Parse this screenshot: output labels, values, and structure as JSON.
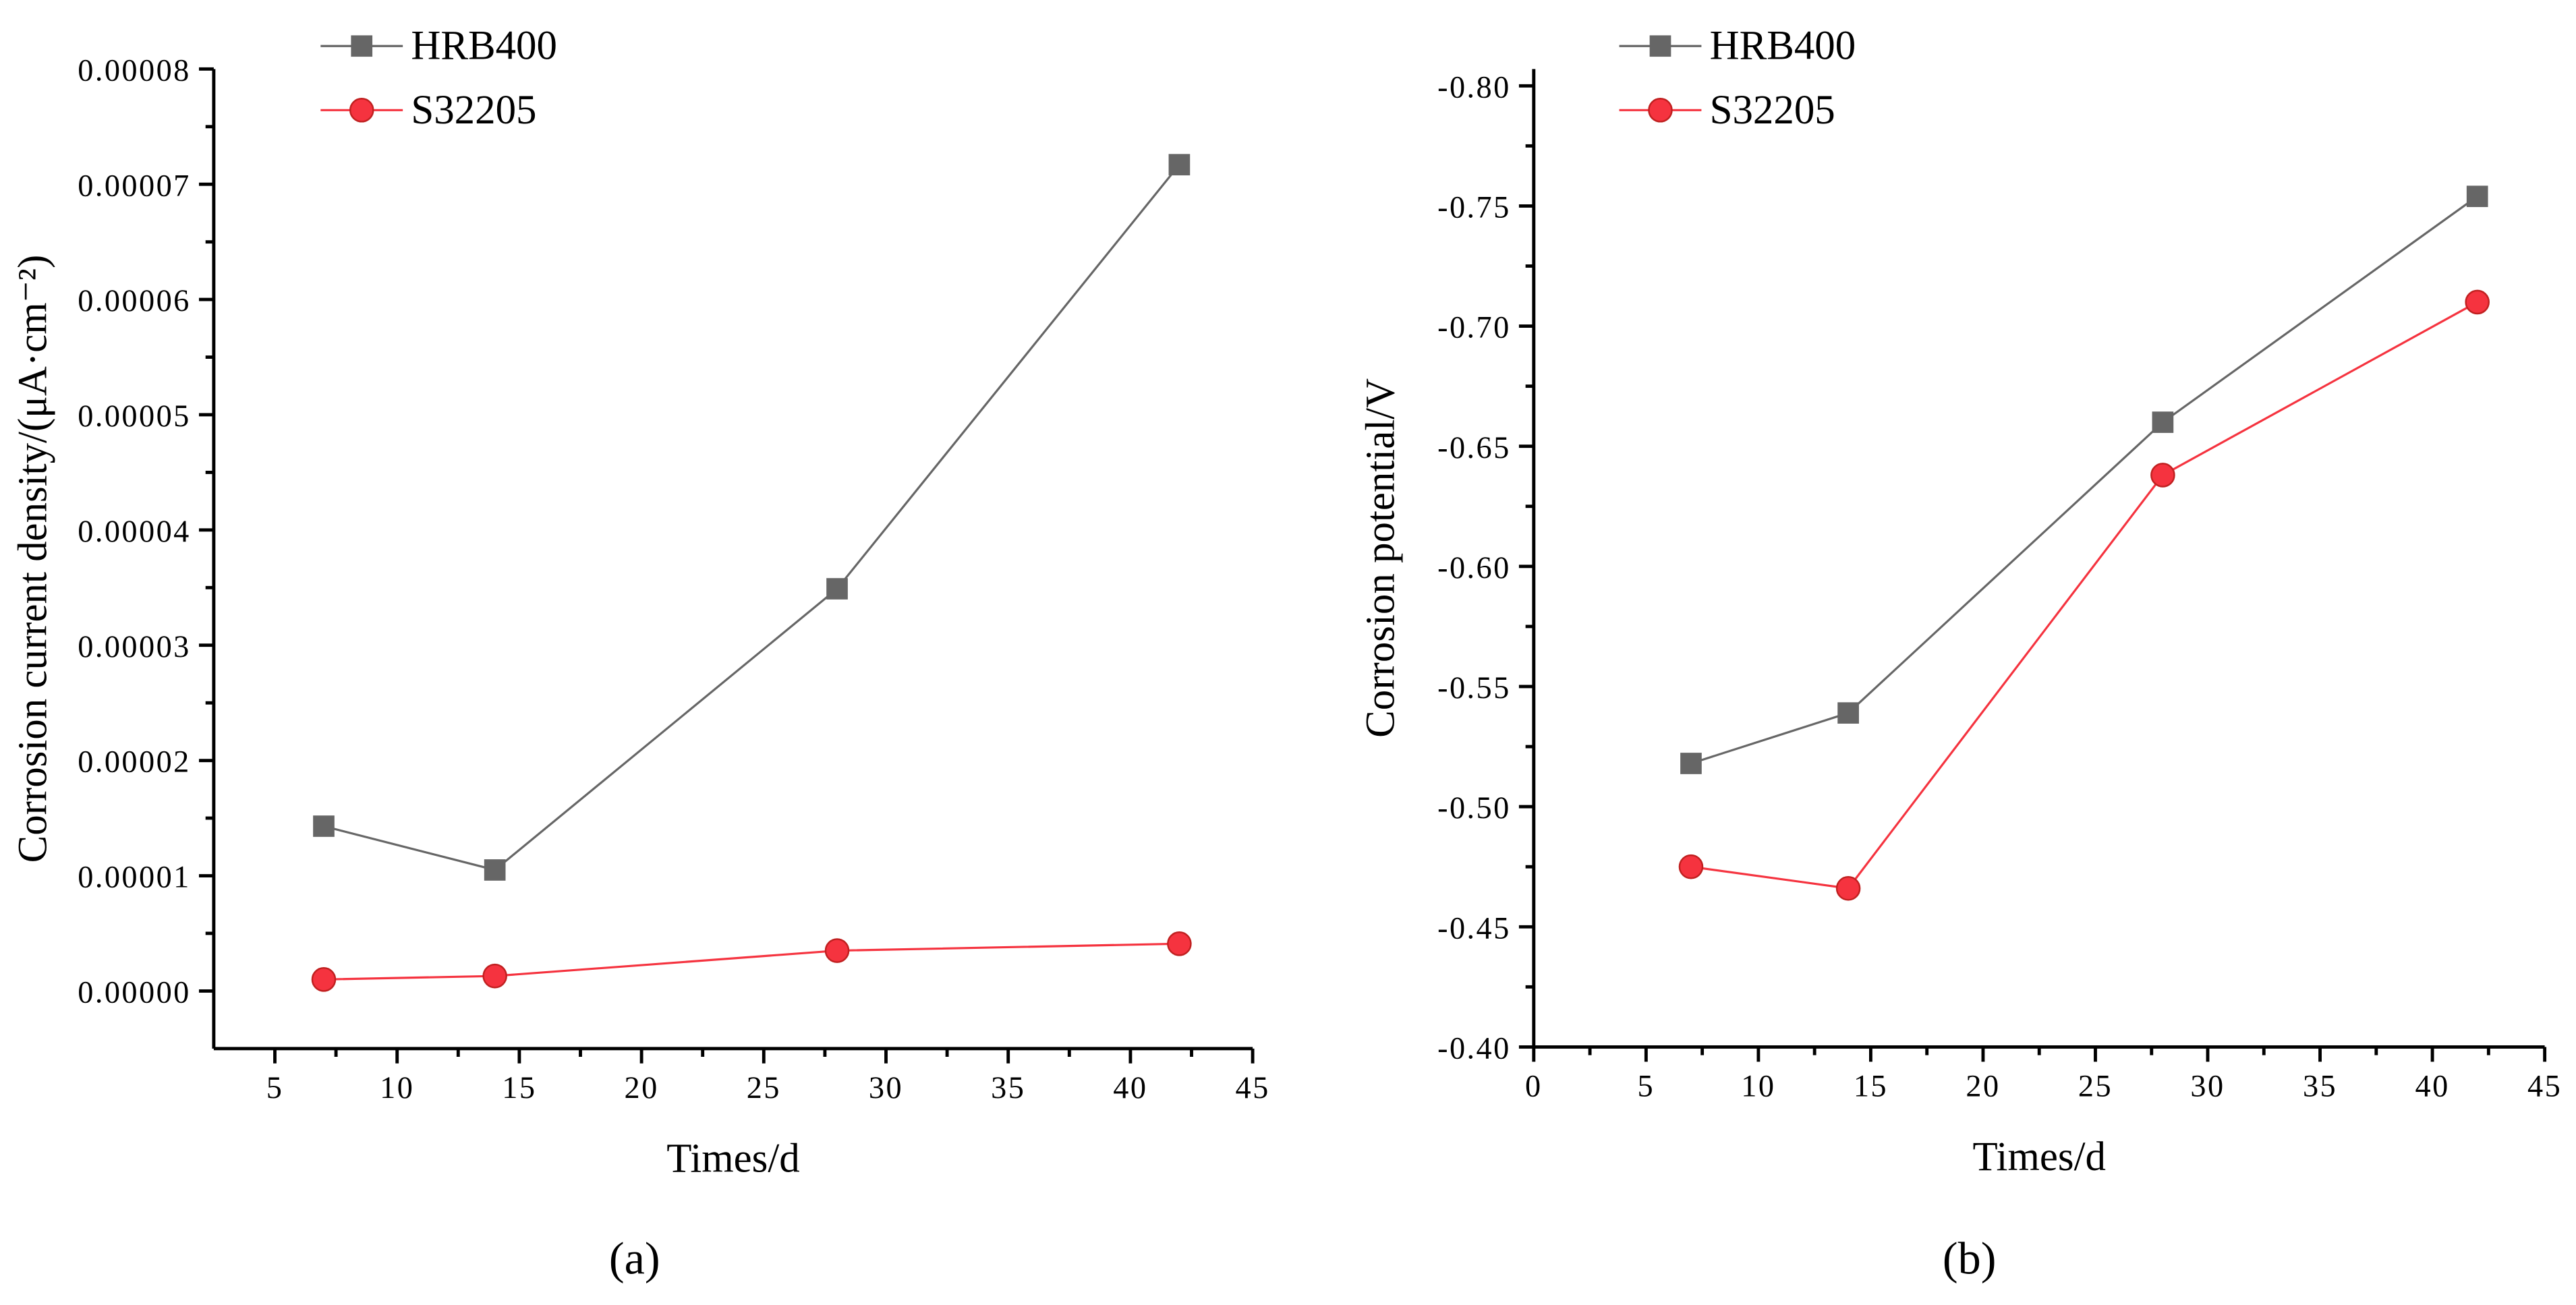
{
  "chart_data": [
    {
      "type": "line",
      "caption": "(a)",
      "xlabel": "Times/d",
      "ylabel": "Corrosion current density/(μA·cm⁻²)",
      "xlim": [
        2.5,
        45
      ],
      "xticks": [
        5,
        10,
        15,
        20,
        25,
        30,
        35,
        40,
        45
      ],
      "ylim": [
        -5e-06,
        8e-05
      ],
      "yticks": [
        {
          "value": 0,
          "label": "0.00000"
        },
        {
          "value": 1e-05,
          "label": "0.00001"
        },
        {
          "value": 2e-05,
          "label": "0.00002"
        },
        {
          "value": 3e-05,
          "label": "0.00003"
        },
        {
          "value": 4e-05,
          "label": "0.00004"
        },
        {
          "value": 5e-05,
          "label": "0.00005"
        },
        {
          "value": 6e-05,
          "label": "0.00006"
        },
        {
          "value": 7e-05,
          "label": "0.00007"
        },
        {
          "value": 8e-05,
          "label": "0.00008"
        }
      ],
      "x": [
        7,
        14,
        28,
        42
      ],
      "series": [
        {
          "name": "HRB400",
          "color": "#666666",
          "marker": "square",
          "values": [
            1.43e-05,
            1.05e-05,
            3.49e-05,
            7.17e-05
          ]
        },
        {
          "name": "S32205",
          "color": "#f5333f",
          "marker": "circle",
          "values": [
            1e-06,
            1.3e-06,
            3.5e-06,
            4.1e-06
          ]
        }
      ]
    },
    {
      "type": "line",
      "caption": "(b)",
      "xlabel": "Times/d",
      "ylabel": "Corrosion potential/V",
      "xlim": [
        0,
        45
      ],
      "xticks": [
        0,
        5,
        10,
        15,
        20,
        25,
        30,
        35,
        40,
        45
      ],
      "ylim": [
        -0.4,
        -0.807
      ],
      "yticks": [
        {
          "value": -0.4,
          "label": "-0.40"
        },
        {
          "value": -0.45,
          "label": "-0.45"
        },
        {
          "value": -0.5,
          "label": "-0.50"
        },
        {
          "value": -0.55,
          "label": "-0.55"
        },
        {
          "value": -0.6,
          "label": "-0.60"
        },
        {
          "value": -0.65,
          "label": "-0.65"
        },
        {
          "value": -0.7,
          "label": "-0.70"
        },
        {
          "value": -0.75,
          "label": "-0.75"
        },
        {
          "value": -0.8,
          "label": "-0.80"
        }
      ],
      "x": [
        7,
        14,
        28,
        42
      ],
      "series": [
        {
          "name": "HRB400",
          "color": "#666666",
          "marker": "square",
          "values": [
            -0.518,
            -0.539,
            -0.66,
            -0.754
          ]
        },
        {
          "name": "S32205",
          "color": "#f5333f",
          "marker": "circle",
          "values": [
            -0.475,
            -0.466,
            -0.638,
            -0.71
          ]
        }
      ]
    }
  ]
}
